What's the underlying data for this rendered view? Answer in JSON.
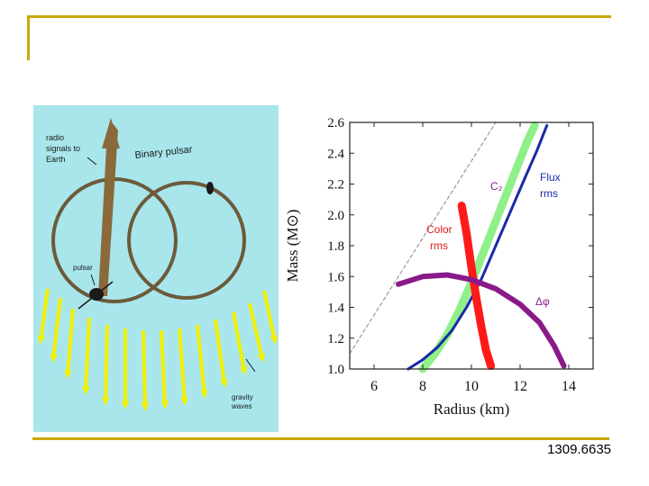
{
  "footer": {
    "reference": "1309.6635"
  },
  "colors": {
    "frame": "#c9a800",
    "left_bg": "#a8e6ec",
    "gw_arrow": "#f2f000",
    "orbit": "#6d5a3a",
    "beam": "#8a6a3a",
    "c2_curve": "#8ff08a",
    "flux_curve": "#1a2aa8",
    "color_curve": "#ff1a1a",
    "dphi_curve": "#8a1a8a"
  },
  "left_figure": {
    "labels": {
      "radio": "radio signals to Earth",
      "binary": "Binary pulsar",
      "pulsar": "pulsar",
      "gw": "gravity waves"
    }
  },
  "chart_data": {
    "type": "line",
    "xlabel": "Radius (km)",
    "ylabel": "Mass (M⊙)",
    "xlim": [
      5,
      15
    ],
    "ylim": [
      1.0,
      2.6
    ],
    "x_ticks": [
      6,
      8,
      10,
      12,
      14
    ],
    "y_ticks": [
      1.0,
      1.2,
      1.4,
      1.6,
      1.8,
      2.0,
      2.2,
      2.4,
      2.6
    ],
    "x_tick_labels": [
      "6",
      "8",
      "10",
      "12",
      "14"
    ],
    "y_tick_labels": [
      "1.0",
      "1.2",
      "1.4",
      "1.6",
      "1.8",
      "2.0",
      "2.2",
      "2.4",
      "2.6"
    ],
    "series": [
      {
        "name": "C₂",
        "color": "#8ff08a",
        "width": 9,
        "x": [
          8.0,
          8.5,
          9.0,
          9.5,
          10.0,
          10.5,
          11.0,
          11.5,
          12.0,
          12.3,
          12.6
        ],
        "y": [
          1.0,
          1.1,
          1.22,
          1.38,
          1.56,
          1.76,
          1.96,
          2.16,
          2.36,
          2.48,
          2.58
        ]
      },
      {
        "name": "Flux rms",
        "color": "#1a2aa8",
        "width": 3,
        "x": [
          7.4,
          8.0,
          8.6,
          9.2,
          9.8,
          10.4,
          11.0,
          11.6,
          12.2,
          12.7,
          13.1
        ],
        "y": [
          1.0,
          1.06,
          1.14,
          1.25,
          1.4,
          1.58,
          1.8,
          2.02,
          2.24,
          2.42,
          2.58
        ]
      },
      {
        "name": "Color rms",
        "color": "#ff1a1a",
        "width": 9,
        "x": [
          9.6,
          9.8,
          10.0,
          10.2,
          10.4,
          10.6,
          10.8
        ],
        "y": [
          2.06,
          1.88,
          1.66,
          1.46,
          1.28,
          1.12,
          1.02
        ]
      },
      {
        "name": "Δφ",
        "color": "#8a1a8a",
        "width": 6,
        "x": [
          7.0,
          8.0,
          9.0,
          10.0,
          11.0,
          12.0,
          12.8,
          13.4,
          13.8
        ],
        "y": [
          1.55,
          1.6,
          1.61,
          1.58,
          1.52,
          1.42,
          1.3,
          1.15,
          1.02
        ]
      },
      {
        "name": "",
        "color": "#888888",
        "width": 1,
        "dashed": true,
        "x": [
          5.0,
          7.0,
          9.0,
          11.0
        ],
        "y": [
          1.1,
          1.6,
          2.1,
          2.6
        ]
      }
    ],
    "annotations": [
      "C₂",
      "Flux",
      "rms",
      "Color",
      "rms",
      "Δφ"
    ]
  }
}
